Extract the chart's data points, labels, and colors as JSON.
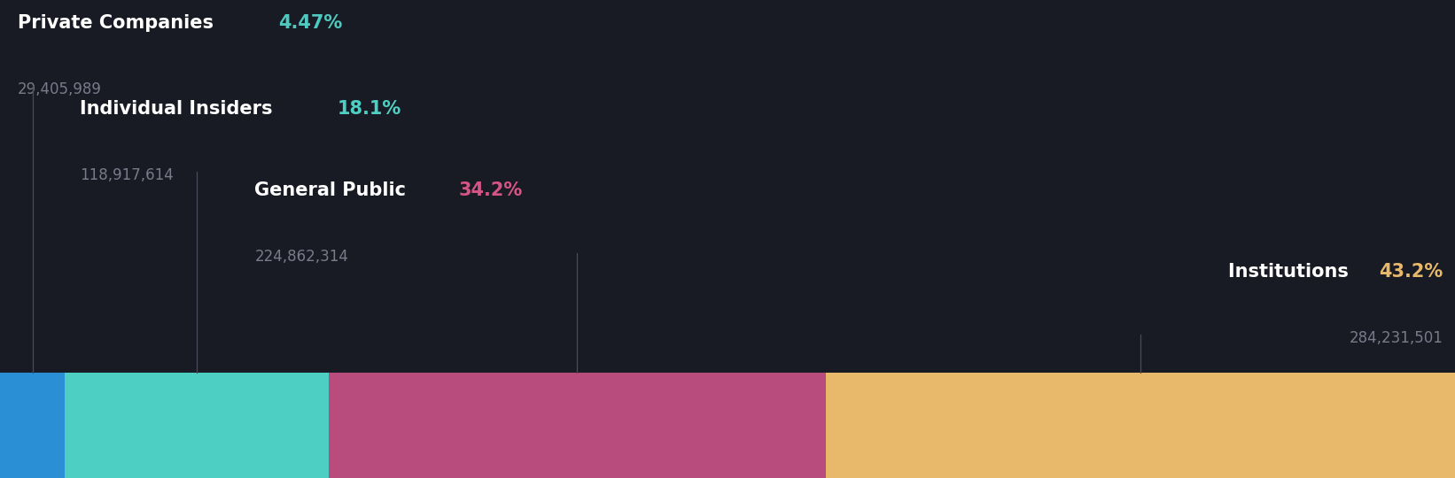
{
  "background_color": "#181b24",
  "segments": [
    {
      "label": "Private Companies",
      "pct_str": "4.47%",
      "pct": 4.47,
      "shares": "29,405,989",
      "bar_color": "#2b8fd6",
      "pct_color": "#4ec9c0",
      "label_color": "#ffffff",
      "shares_color": "#7a7a8a"
    },
    {
      "label": "Individual Insiders",
      "pct_str": "18.1%",
      "pct": 18.1,
      "shares": "118,917,614",
      "bar_color": "#4ecfc4",
      "pct_color": "#4ecfc4",
      "label_color": "#ffffff",
      "shares_color": "#7a7a8a"
    },
    {
      "label": "General Public",
      "pct_str": "34.2%",
      "pct": 34.2,
      "shares": "224,862,314",
      "bar_color": "#b84c7d",
      "pct_color": "#d45585",
      "label_color": "#ffffff",
      "shares_color": "#7a7a8a"
    },
    {
      "label": "Institutions",
      "pct_str": "43.2%",
      "pct": 43.2,
      "shares": "284,231,501",
      "bar_color": "#e8b96a",
      "pct_color": "#e8b96a",
      "label_color": "#ffffff",
      "shares_color": "#7a7a8a"
    }
  ],
  "label_fontsize": 15,
  "shares_fontsize": 12,
  "line_color": "#4a4a5a",
  "fig_width": 16.42,
  "fig_height": 5.4,
  "dpi": 100
}
